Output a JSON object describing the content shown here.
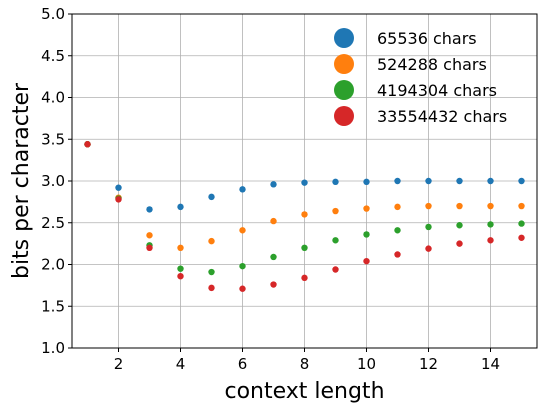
{
  "chart_data": {
    "type": "scatter",
    "xlabel": "context length",
    "ylabel": "bits per character",
    "xlim": [
      0.5,
      15.5
    ],
    "ylim": [
      1.0,
      5.0
    ],
    "xticks": [
      2,
      4,
      6,
      8,
      10,
      12,
      14
    ],
    "yticks": [
      1.0,
      1.5,
      2.0,
      2.5,
      3.0,
      3.5,
      4.0,
      4.5,
      5.0
    ],
    "ytick_labels": [
      "1.0",
      "1.5",
      "2.0",
      "2.5",
      "3.0",
      "3.5",
      "4.0",
      "4.5",
      "5.0"
    ],
    "grid": true,
    "legend_position": "top-right",
    "x": [
      1,
      2,
      3,
      4,
      5,
      6,
      7,
      8,
      9,
      10,
      11,
      12,
      13,
      14,
      15
    ],
    "series": [
      {
        "name": "65536 chars",
        "color": "#1f77b4",
        "values": [
          3.44,
          2.92,
          2.66,
          2.69,
          2.81,
          2.9,
          2.96,
          2.98,
          2.99,
          2.99,
          3.0,
          3.0,
          3.0,
          3.0,
          3.0
        ]
      },
      {
        "name": "524288 chars",
        "color": "#ff7f0e",
        "values": [
          3.44,
          2.8,
          2.35,
          2.2,
          2.28,
          2.41,
          2.52,
          2.6,
          2.64,
          2.67,
          2.69,
          2.7,
          2.7,
          2.7,
          2.7
        ]
      },
      {
        "name": "4194304 chars",
        "color": "#2ca02c",
        "values": [
          3.44,
          2.79,
          2.23,
          1.95,
          1.91,
          1.98,
          2.09,
          2.2,
          2.29,
          2.36,
          2.41,
          2.45,
          2.47,
          2.48,
          2.49
        ]
      },
      {
        "name": "33554432 chars",
        "color": "#d62728",
        "values": [
          3.44,
          2.78,
          2.2,
          1.86,
          1.72,
          1.71,
          1.76,
          1.84,
          1.94,
          2.04,
          2.12,
          2.19,
          2.25,
          2.29,
          2.32
        ]
      }
    ]
  }
}
